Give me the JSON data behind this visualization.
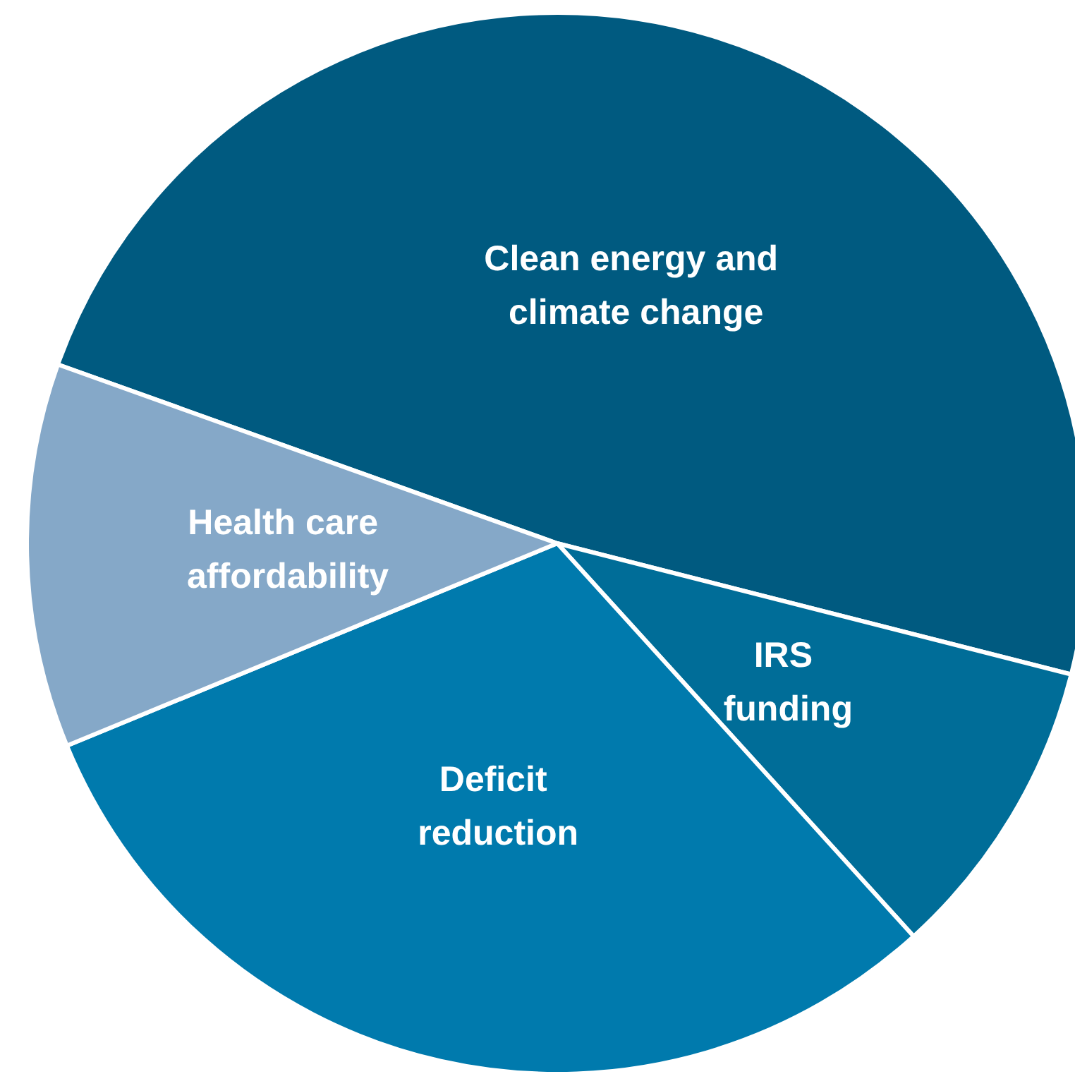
{
  "chart_data": {
    "type": "pie",
    "categories": [
      "Clean energy and climate change",
      "IRS funding",
      "Deficit reduction",
      "Health care affordability"
    ],
    "values": [
      48.5,
      9.3,
      30.5,
      11.7
    ],
    "colors": [
      "#005a80",
      "#006d98",
      "#007aad",
      "#85a8c8"
    ],
    "legend": false
  }
}
